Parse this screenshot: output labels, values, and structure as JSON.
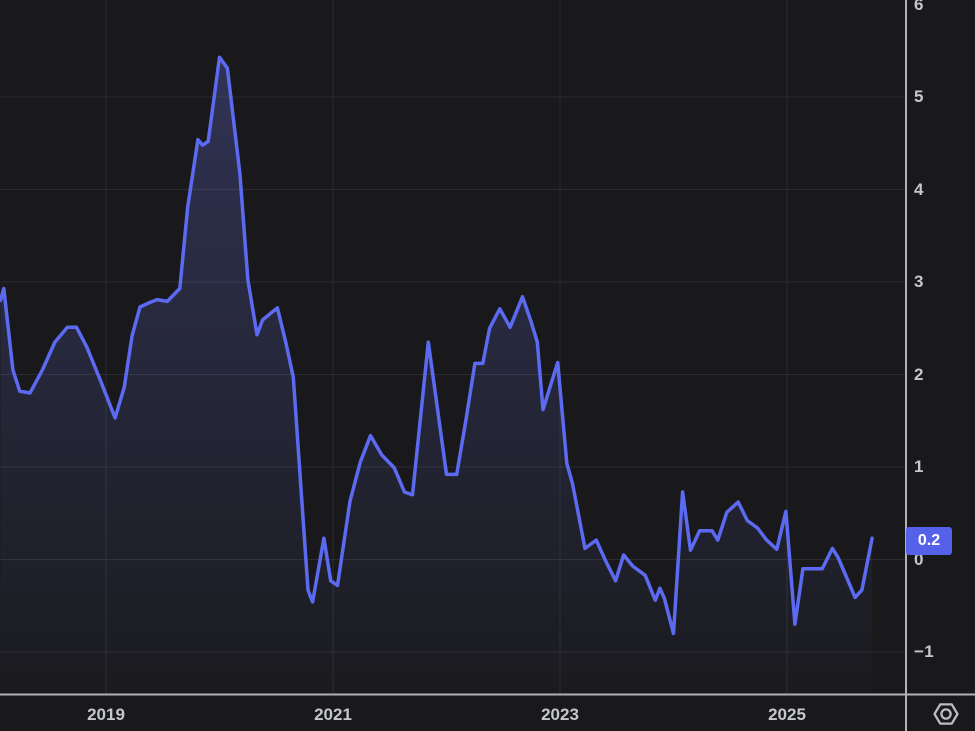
{
  "theme": {
    "background": "#19191b",
    "grid_color": "#2c2c30",
    "axis_line_color": "#b2b2b6",
    "label_color": "#c4c7cc",
    "line_color": "#5c6af2",
    "fill_top": "rgba(108,118,230,0.30)",
    "fill_bottom": "rgba(108,118,230,0.02)",
    "badge_color": "#5661e9",
    "badge_text_color": "#ffffff",
    "icon_color": "#bcbcc0"
  },
  "chart_data": {
    "type": "area",
    "title": "",
    "xlabel": "",
    "ylabel": "",
    "xlim": [
      2018.06,
      2026.04
    ],
    "ylim": [
      -1.45,
      6.05
    ],
    "grid": true,
    "legend_position": "none",
    "last_price": 0.2,
    "last_price_label": "0.2",
    "x_ticks": [
      2019,
      2021,
      2023,
      2025
    ],
    "y_ticks": [
      6,
      5,
      4,
      3,
      2,
      1,
      0,
      -1
    ],
    "y_grid_values": [
      5,
      4,
      3,
      2,
      1,
      0,
      -1
    ],
    "points": [
      [
        2018.07,
        2.8
      ],
      [
        2018.1,
        2.93
      ],
      [
        2018.18,
        2.05
      ],
      [
        2018.24,
        1.82
      ],
      [
        2018.33,
        1.8
      ],
      [
        2018.44,
        2.05
      ],
      [
        2018.55,
        2.35
      ],
      [
        2018.66,
        2.51
      ],
      [
        2018.74,
        2.51
      ],
      [
        2018.83,
        2.3
      ],
      [
        2018.95,
        1.94
      ],
      [
        2019.08,
        1.53
      ],
      [
        2019.16,
        1.86
      ],
      [
        2019.23,
        2.42
      ],
      [
        2019.3,
        2.73
      ],
      [
        2019.37,
        2.77
      ],
      [
        2019.45,
        2.81
      ],
      [
        2019.54,
        2.79
      ],
      [
        2019.65,
        2.93
      ],
      [
        2019.72,
        3.81
      ],
      [
        2019.81,
        4.54
      ],
      [
        2019.85,
        4.48
      ],
      [
        2019.9,
        4.52
      ],
      [
        2020.0,
        5.43
      ],
      [
        2020.07,
        5.31
      ],
      [
        2020.18,
        4.17
      ],
      [
        2020.25,
        3.02
      ],
      [
        2020.33,
        2.43
      ],
      [
        2020.38,
        2.59
      ],
      [
        2020.51,
        2.72
      ],
      [
        2020.58,
        2.37
      ],
      [
        2020.65,
        1.97
      ],
      [
        2020.78,
        -0.33
      ],
      [
        2020.82,
        -0.46
      ],
      [
        2020.92,
        0.23
      ],
      [
        2020.98,
        -0.23
      ],
      [
        2021.04,
        -0.28
      ],
      [
        2021.15,
        0.63
      ],
      [
        2021.24,
        1.05
      ],
      [
        2021.33,
        1.34
      ],
      [
        2021.43,
        1.13
      ],
      [
        2021.54,
        0.99
      ],
      [
        2021.63,
        0.73
      ],
      [
        2021.7,
        0.7
      ],
      [
        2021.84,
        2.35
      ],
      [
        2022.0,
        0.92
      ],
      [
        2022.09,
        0.92
      ],
      [
        2022.17,
        1.5
      ],
      [
        2022.25,
        2.12
      ],
      [
        2022.32,
        2.12
      ],
      [
        2022.38,
        2.5
      ],
      [
        2022.47,
        2.71
      ],
      [
        2022.56,
        2.51
      ],
      [
        2022.67,
        2.84
      ],
      [
        2022.74,
        2.59
      ],
      [
        2022.8,
        2.35
      ],
      [
        2022.85,
        1.62
      ],
      [
        2022.98,
        2.13
      ],
      [
        2023.06,
        1.04
      ],
      [
        2023.11,
        0.82
      ],
      [
        2023.22,
        0.12
      ],
      [
        2023.32,
        0.21
      ],
      [
        2023.4,
        -0.01
      ],
      [
        2023.49,
        -0.23
      ],
      [
        2023.56,
        0.05
      ],
      [
        2023.64,
        -0.07
      ],
      [
        2023.75,
        -0.17
      ],
      [
        2023.84,
        -0.44
      ],
      [
        2023.88,
        -0.31
      ],
      [
        2023.92,
        -0.42
      ],
      [
        2024.0,
        -0.8
      ],
      [
        2024.08,
        0.73
      ],
      [
        2024.15,
        0.1
      ],
      [
        2024.23,
        0.31
      ],
      [
        2024.34,
        0.31
      ],
      [
        2024.39,
        0.21
      ],
      [
        2024.47,
        0.51
      ],
      [
        2024.57,
        0.62
      ],
      [
        2024.65,
        0.42
      ],
      [
        2024.74,
        0.34
      ],
      [
        2024.82,
        0.21
      ],
      [
        2024.91,
        0.11
      ],
      [
        2024.99,
        0.52
      ],
      [
        2025.07,
        -0.7
      ],
      [
        2025.14,
        -0.1
      ],
      [
        2025.31,
        -0.1
      ],
      [
        2025.4,
        0.12
      ],
      [
        2025.45,
        0.02
      ],
      [
        2025.51,
        -0.15
      ],
      [
        2025.6,
        -0.41
      ],
      [
        2025.66,
        -0.33
      ],
      [
        2025.75,
        0.23
      ]
    ]
  },
  "axes": {
    "y_labels": [
      "6",
      "5",
      "4",
      "3",
      "2",
      "1",
      "0",
      "−1"
    ],
    "x_labels": [
      "2019",
      "2021",
      "2023",
      "2025"
    ]
  },
  "controls": {
    "axis_settings_icon": "gear-hexagon-icon"
  }
}
